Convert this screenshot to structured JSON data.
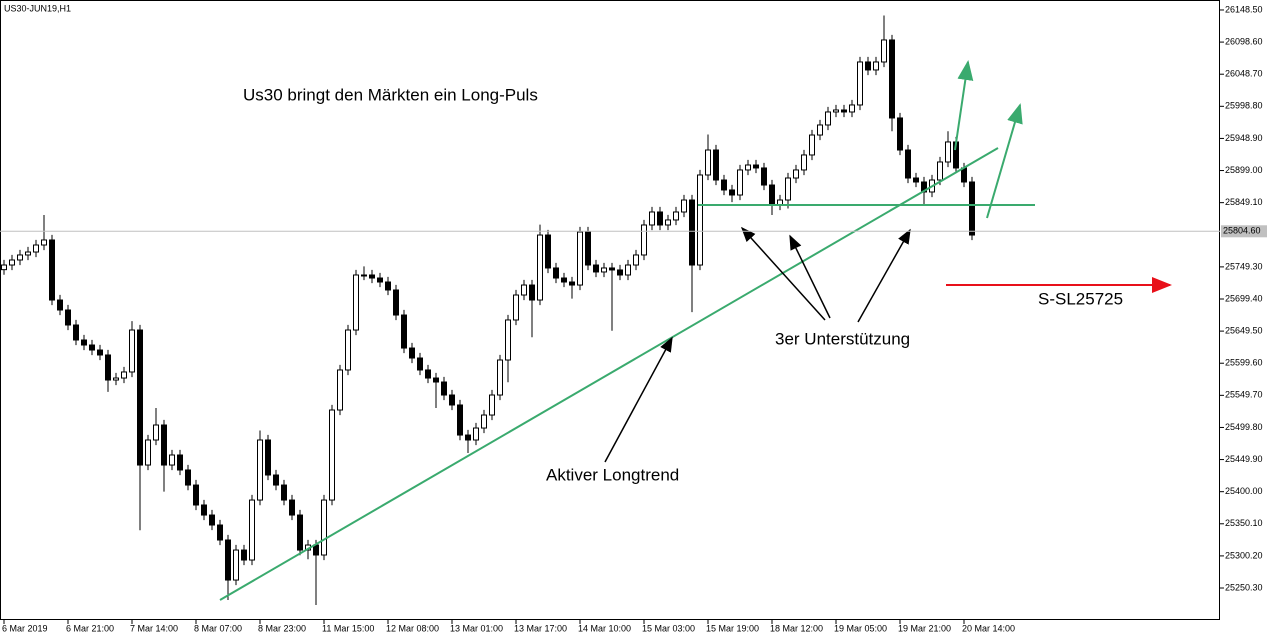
{
  "chart_data": {
    "type": "candlestick",
    "title": "US30-JUN19,H1",
    "annotations": [
      "Us30 bringt den Märkten ein Long-Puls",
      "Aktiver Longtrend",
      "3er Unterstützung",
      "S-SL25725"
    ],
    "up_color": "#ffffff",
    "down_color": "#000000",
    "line_color": "#000000",
    "categories": [
      "6 Mar 2019",
      null,
      null,
      null,
      null,
      null,
      null,
      null,
      "6 Mar 21:00",
      null,
      null,
      null,
      null,
      null,
      null,
      null,
      "7 Mar 14:00",
      null,
      null,
      null,
      null,
      null,
      null,
      null,
      "8 Mar 07:00",
      null,
      null,
      null,
      null,
      null,
      null,
      null,
      "8 Mar 23:00",
      null,
      null,
      null,
      null,
      null,
      null,
      null,
      "11 Mar 15:00",
      null,
      null,
      null,
      null,
      null,
      null,
      null,
      "12 Mar 08:00",
      null,
      null,
      null,
      null,
      null,
      null,
      null,
      "13 Mar 01:00",
      null,
      null,
      null,
      null,
      null,
      null,
      null,
      "13 Mar 17:00",
      null,
      null,
      null,
      null,
      null,
      null,
      null,
      "14 Mar 10:00",
      null,
      null,
      null,
      null,
      null,
      null,
      null,
      "15 Mar 03:00",
      null,
      null,
      null,
      null,
      null,
      null,
      null,
      "15 Mar 19:00",
      null,
      null,
      null,
      null,
      null,
      null,
      null,
      "18 Mar 12:00",
      null,
      null,
      null,
      null,
      null,
      null,
      null,
      "19 Mar 05:00",
      null,
      null,
      null,
      null,
      null,
      null,
      null,
      "19 Mar 21:00",
      null,
      null,
      null,
      null,
      null,
      null,
      null,
      "20 Mar 14:00",
      null
    ],
    "open": [
      25745.0,
      25752.2,
      25760.0,
      25767.8,
      25772.4,
      25783.3,
      25791.1,
      25697.8,
      25682.3,
      25659.0,
      25635.7,
      25627.9,
      25620.1,
      25612.4,
      25573.5,
      25576.6,
      25586.0,
      25651.2,
      25441.4,
      25480.3,
      25503.6,
      25441.4,
      25457.0,
      25433.7,
      25410.3,
      25379.3,
      25363.7,
      25348.2,
      25324.9,
      25262.7,
      25309.3,
      25293.8,
      25387.0,
      25480.3,
      25425.9,
      25410.3,
      25387.0,
      25363.7,
      25309.3,
      25317.1,
      25301.6,
      25387.0,
      25526.9,
      25589.1,
      25651.2,
      25736.7,
      25736.7,
      25732.0,
      25725.8,
      25713.4,
      25674.5,
      25623.2,
      25607.7,
      25589.1,
      25576.6,
      25570.4,
      25550.2,
      25534.7,
      25488.0,
      25480.3,
      25498.9,
      25519.1,
      25550.2,
      25604.6,
      25666.8,
      25705.6,
      25721.1,
      25697.8,
      25798.8,
      25747.6,
      25732.0,
      25725.8,
      25721.1,
      25803.5,
      25752.2,
      25741.4,
      25747.6,
      25744.5,
      25736.7,
      25752.2,
      25767.8,
      25814.4,
      25834.6,
      25814.4,
      25822.2,
      25834.6,
      25853.2,
      25752.2,
      25892.1,
      25930.9,
      25884.3,
      25868.8,
      25861.0,
      25899.9,
      25907.6,
      25903.0,
      25876.5,
      25845.5,
      25853.2,
      25887.4,
      25899.9,
      25923.2,
      25954.2,
      25969.8,
      25990.0,
      25993.1,
      25990.0,
      26000.9,
      26067.7,
      26055.3,
      26067.7,
      26101.9,
      25980.7,
      25930.9,
      25887.4,
      25881.2,
      25865.7,
      25884.3,
      25912.3,
      25943.4,
      25903.0,
      25881.2
    ],
    "high": [
      25760.2,
      25768.0,
      25775.8,
      25780.4,
      25791.3,
      25830.0,
      25799.1,
      25705.8,
      25690.3,
      25667.0,
      25643.7,
      25635.9,
      25628.1,
      25620.4,
      25584.6,
      25594.0,
      25665.0,
      25659.2,
      25488.3,
      25530.0,
      25511.6,
      25465.0,
      25465.0,
      25441.7,
      25418.3,
      25387.3,
      25371.7,
      25356.2,
      25332.9,
      25317.3,
      25317.3,
      25395.0,
      25495.0,
      25488.3,
      25433.9,
      25418.3,
      25395.0,
      25371.7,
      25325.1,
      25325.1,
      25395.0,
      25534.9,
      25597.1,
      25659.2,
      25744.7,
      25750.0,
      25744.7,
      25740.0,
      25733.8,
      25721.4,
      25682.5,
      25631.2,
      25615.7,
      25597.1,
      25584.6,
      25578.4,
      25558.2,
      25542.7,
      25496.0,
      25506.9,
      25527.1,
      25558.2,
      25612.6,
      25674.8,
      25713.6,
      25729.1,
      25729.1,
      25815.0,
      25806.8,
      25755.6,
      25740.0,
      25733.8,
      25811.5,
      25811.5,
      25760.2,
      25755.6,
      25755.6,
      25752.5,
      25760.2,
      25775.8,
      25822.4,
      25842.6,
      25842.6,
      25830.2,
      25842.6,
      25861.2,
      25861.2,
      25900.1,
      25955.0,
      25938.9,
      25892.3,
      25876.8,
      25907.9,
      25915.6,
      25915.6,
      25911.0,
      25884.5,
      25861.2,
      25895.4,
      25907.9,
      25931.2,
      25962.2,
      25977.8,
      25998.0,
      26001.1,
      26001.1,
      26008.9,
      26075.7,
      26075.7,
      26075.7,
      26140.0,
      26109.9,
      25988.7,
      25938.9,
      25895.4,
      25889.2,
      25892.3,
      25920.3,
      25960.0,
      25951.4,
      25911.0,
      25889.2
    ],
    "low": [
      25737.0,
      25744.2,
      25752.0,
      25759.8,
      25764.4,
      25775.3,
      25689.8,
      25674.3,
      25651.0,
      25627.7,
      25619.9,
      25612.1,
      25604.4,
      25555.0,
      25565.5,
      25568.6,
      25578.0,
      25340.0,
      25433.4,
      25472.3,
      25400.0,
      25433.4,
      25425.7,
      25402.3,
      25371.3,
      25355.7,
      25340.2,
      25316.9,
      25231.6,
      25254.7,
      25285.8,
      25285.8,
      25379.0,
      25417.9,
      25402.3,
      25379.0,
      25355.7,
      25301.3,
      25295.0,
      25223.9,
      25293.6,
      25379.0,
      25518.9,
      25581.1,
      25643.2,
      25728.7,
      25724.0,
      25717.8,
      25705.4,
      25666.5,
      25615.2,
      25599.7,
      25581.1,
      25568.6,
      25530.0,
      25542.2,
      25526.7,
      25480.0,
      25460.0,
      25472.3,
      25490.9,
      25511.1,
      25542.2,
      25570.0,
      25658.8,
      25697.6,
      25640.0,
      25689.8,
      25739.6,
      25724.0,
      25717.8,
      25700.0,
      25713.1,
      25744.2,
      25733.4,
      25733.4,
      25650.0,
      25728.7,
      25728.7,
      25744.2,
      25759.8,
      25806.4,
      25806.4,
      25806.4,
      25814.2,
      25826.6,
      25679.0,
      25744.2,
      25884.1,
      25876.3,
      25860.8,
      25850.0,
      25853.0,
      25891.9,
      25895.0,
      25868.5,
      25830.0,
      25837.5,
      25840.0,
      25879.4,
      25891.9,
      25915.2,
      25946.2,
      25961.8,
      25982.0,
      25982.0,
      25982.0,
      25992.9,
      26047.3,
      26047.3,
      26059.7,
      25960.0,
      25922.9,
      25879.4,
      25873.2,
      25845.0,
      25857.7,
      25876.3,
      25904.3,
      25895.0,
      25873.2,
      25790.8
    ],
    "close": [
      25752.2,
      25760.0,
      25767.8,
      25772.4,
      25783.3,
      25791.1,
      25697.8,
      25682.3,
      25659.0,
      25635.7,
      25627.9,
      25620.1,
      25612.4,
      25573.5,
      25576.6,
      25586.0,
      25651.2,
      25441.4,
      25480.3,
      25503.6,
      25441.4,
      25457.0,
      25433.7,
      25410.3,
      25379.3,
      25363.7,
      25348.2,
      25324.9,
      25262.7,
      25309.3,
      25293.8,
      25387.0,
      25480.3,
      25425.9,
      25410.3,
      25387.0,
      25363.7,
      25309.3,
      25317.1,
      25301.6,
      25387.0,
      25526.9,
      25589.1,
      25651.2,
      25736.7,
      25736.7,
      25732.0,
      25725.8,
      25713.4,
      25674.5,
      25623.2,
      25607.7,
      25589.1,
      25576.6,
      25570.4,
      25550.2,
      25534.7,
      25488.0,
      25480.3,
      25498.9,
      25519.1,
      25550.2,
      25604.6,
      25666.8,
      25705.6,
      25721.1,
      25697.8,
      25798.8,
      25747.6,
      25732.0,
      25725.8,
      25721.1,
      25803.5,
      25752.2,
      25741.4,
      25747.6,
      25744.5,
      25736.7,
      25752.2,
      25767.8,
      25814.4,
      25834.6,
      25814.4,
      25822.2,
      25834.6,
      25853.2,
      25752.2,
      25892.1,
      25930.9,
      25884.3,
      25868.8,
      25861.0,
      25899.9,
      25907.6,
      25903.0,
      25876.5,
      25845.5,
      25853.2,
      25887.4,
      25899.9,
      25923.2,
      25954.2,
      25969.8,
      25990.0,
      25993.1,
      25990.0,
      26000.9,
      26067.7,
      26055.3,
      26067.7,
      26101.9,
      25980.7,
      25930.9,
      25887.4,
      25881.2,
      25865.7,
      25884.3,
      25912.3,
      25943.4,
      25903.0,
      25881.2,
      25798.8
    ],
    "price_label": {
      "value": 25804.6,
      "label": "25804.60"
    },
    "ylim": [
      25200.6,
      26164.0
    ],
    "yticks": [
      {
        "value": 26148.5,
        "label": "26148.50"
      },
      {
        "value": 26098.6,
        "label": "26098.60"
      },
      {
        "value": 26048.7,
        "label": "26048.70"
      },
      {
        "value": 25998.8,
        "label": "25998.80"
      },
      {
        "value": 25948.9,
        "label": "25948.90"
      },
      {
        "value": 25899.0,
        "label": "25899.00"
      },
      {
        "value": 25849.1,
        "label": "25849.10"
      },
      {
        "value": 25749.3,
        "label": "25749.30"
      },
      {
        "value": 25699.4,
        "label": "25699.40"
      },
      {
        "value": 25649.5,
        "label": "25649.50"
      },
      {
        "value": 25599.6,
        "label": "25599.60"
      },
      {
        "value": 25549.7,
        "label": "25549.70"
      },
      {
        "value": 25499.8,
        "label": "25499.80"
      },
      {
        "value": 25449.9,
        "label": "25449.90"
      },
      {
        "value": 25400.0,
        "label": "25400.00"
      },
      {
        "value": 25350.1,
        "label": "25350.10"
      },
      {
        "value": 25300.2,
        "label": "25300.20"
      },
      {
        "value": 25250.3,
        "label": "25250.30"
      }
    ],
    "grid": false
  }
}
